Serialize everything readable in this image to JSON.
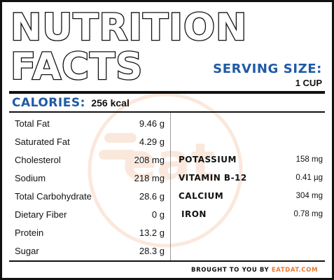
{
  "title": {
    "line1": "NUTRITION",
    "line2": "FACTS"
  },
  "serving": {
    "label": "SERVING SIZE:",
    "value": "1 CUP"
  },
  "calories": {
    "label": "CALORIES:",
    "value": "256 kcal"
  },
  "nutrients": [
    {
      "name": "Total Fat",
      "value": "9.46 g"
    },
    {
      "name": "Saturated Fat",
      "value": "4.29 g"
    },
    {
      "name": "Cholesterol",
      "value": "208 mg"
    },
    {
      "name": "Sodium",
      "value": "218 mg"
    },
    {
      "name": "Total Carbohydrate",
      "value": "28.6 g"
    },
    {
      "name": "Dietary Fiber",
      "value": "0 g"
    },
    {
      "name": "Protein",
      "value": "13.2 g"
    },
    {
      "name": "Sugar",
      "value": "28.3 g"
    }
  ],
  "minerals": [
    {
      "name": "POTASSIUM",
      "value": "158 mg"
    },
    {
      "name": "VITAMIN B-12",
      "value": "0.41 µg"
    },
    {
      "name": "CALCIUM",
      "value": "304 mg"
    },
    {
      "name": "IRON",
      "value": "0.78 mg"
    }
  ],
  "footer": {
    "text": "BROUGHT TO YOU BY",
    "brand": "EATDAT.COM"
  },
  "watermark": {
    "text": "eat dat"
  },
  "colors": {
    "accent_blue": "#1f5aa6",
    "brand_orange": "#e8772e",
    "ink": "#111111"
  }
}
